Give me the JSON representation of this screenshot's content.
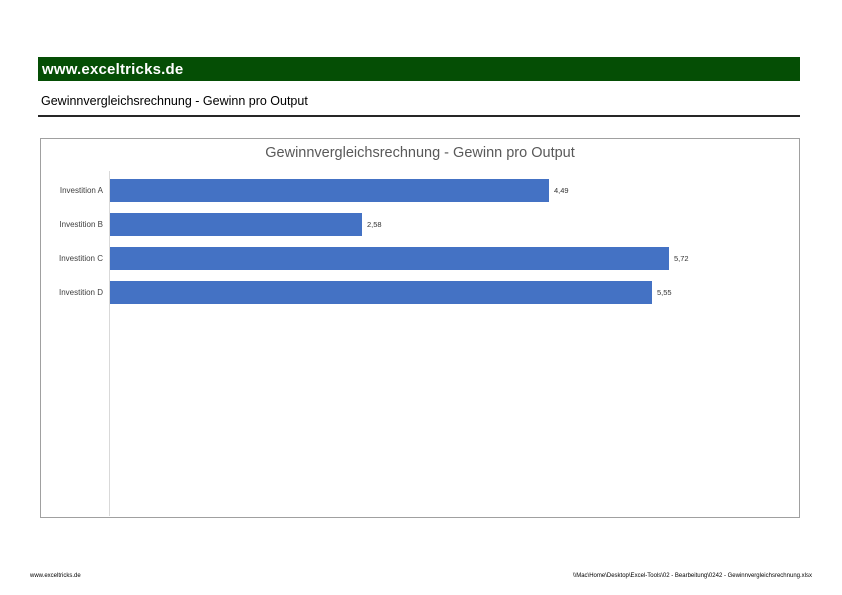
{
  "page": {
    "header_brand": "www.exceltricks.de",
    "subtitle": "Gewinnvergleichsrechnung - Gewinn pro Output",
    "footer_left": "www.exceltricks.de",
    "footer_right": "\\\\Mac\\Home\\Desktop\\Excel-Tools\\02 - Bearbeitung\\0242 - Gewinnvergleichsrechnung.xlsx"
  },
  "colors": {
    "header_bg": "#054e05",
    "bar_fill": "#4472c4",
    "chart_border": "#a0a0a0",
    "axis_line": "#d9d9d9",
    "chart_title_text": "#595959"
  },
  "chart_data": {
    "type": "bar",
    "orientation": "horizontal",
    "title": "Gewinnvergleichsrechnung - Gewinn pro Output",
    "categories": [
      "Investition A",
      "Investition B",
      "Investition C",
      "Investition D"
    ],
    "values": [
      4.49,
      2.58,
      5.72,
      5.55
    ],
    "value_labels": [
      "4,49",
      "2,58",
      "5,72",
      "5,55"
    ],
    "xlim": [
      0,
      7
    ],
    "grid": false,
    "legend": false,
    "data_labels": "outside-end"
  }
}
